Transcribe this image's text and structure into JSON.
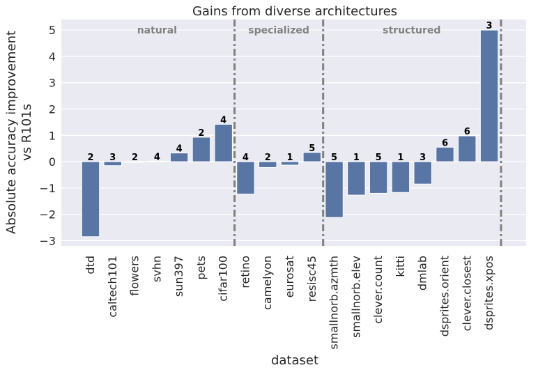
{
  "chart_data": {
    "type": "bar",
    "title": "Gains from diverse architectures",
    "xlabel": "dataset",
    "ylabel_line1": "Absolute accuracy improvement",
    "ylabel_line2": "vs R101s",
    "ylim": [
      -3.2,
      5.4
    ],
    "yticks": [
      -3,
      -2,
      -1,
      0,
      1,
      2,
      3,
      4,
      5
    ],
    "ytick_labels": [
      "−3",
      "−2",
      "−1",
      "0",
      "1",
      "2",
      "3",
      "4",
      "5"
    ],
    "grid": true,
    "bar_color": "#5875a4",
    "categories": [
      "dtd",
      "caltech101",
      "flowers",
      "svhn",
      "sun397",
      "pets",
      "cifar100",
      "retino",
      "camelyon",
      "eurosat",
      "resisc45",
      "smallnorb.azmth",
      "smallnorb.elev",
      "clever.count",
      "kitti",
      "dmlab",
      "dsprites.orient",
      "clever.closest",
      "dsprites.xpos"
    ],
    "values": [
      -2.85,
      -0.15,
      0.0,
      0.02,
      0.33,
      0.93,
      1.42,
      -1.23,
      -0.22,
      -0.13,
      0.35,
      -2.12,
      -1.27,
      -1.2,
      -1.17,
      -0.85,
      0.55,
      0.98,
      5.0
    ],
    "bar_labels": [
      "2",
      "3",
      "2",
      "4",
      "4",
      "2",
      "4",
      "4",
      "2",
      "1",
      "5",
      "5",
      "1",
      "5",
      "1",
      "3",
      "6",
      "6",
      "3"
    ],
    "groups": [
      {
        "name": "natural",
        "start": 0,
        "end": 6
      },
      {
        "name": "specialized",
        "start": 7,
        "end": 10
      },
      {
        "name": "structured",
        "start": 11,
        "end": 18
      }
    ],
    "separator_color": "#808080"
  }
}
